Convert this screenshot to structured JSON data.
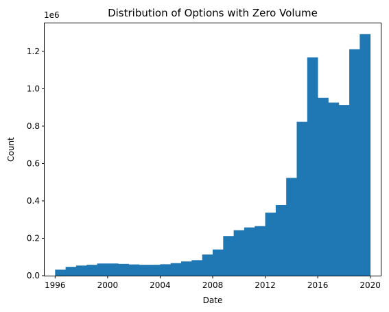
{
  "chart_data": {
    "type": "bar",
    "title": "Distribution of Options with Zero Volume",
    "xlabel": "Date",
    "ylabel": "Count",
    "y_offset_label": "1e6",
    "bar_color": "#1f77b4",
    "grid": false,
    "legend": "none",
    "xlim": [
      1995.2,
      2020.8
    ],
    "ylim": [
      0,
      1.35
    ],
    "x_ticks": [
      1996,
      2000,
      2004,
      2008,
      2012,
      2016,
      2020
    ],
    "x_tick_labels": [
      "1996",
      "2000",
      "2004",
      "2008",
      "2012",
      "2016",
      "2020"
    ],
    "y_ticks": [
      0.0,
      0.2,
      0.4,
      0.6,
      0.8,
      1.0,
      1.2
    ],
    "y_tick_labels": [
      "0.0",
      "0.2",
      "0.4",
      "0.6",
      "0.8",
      "1.0",
      "1.2"
    ],
    "bin_edges": [
      1996.0,
      1996.8,
      1997.6,
      1998.4,
      1999.2,
      2000.0,
      2000.8,
      2001.6,
      2002.4,
      2003.2,
      2004.0,
      2004.8,
      2005.6,
      2006.4,
      2007.2,
      2008.0,
      2008.8,
      2009.6,
      2010.4,
      2011.2,
      2012.0,
      2012.8,
      2013.6,
      2014.4,
      2015.2,
      2016.0,
      2016.8,
      2017.6,
      2018.4,
      2019.2,
      2020.0
    ],
    "values": [
      0.032,
      0.047,
      0.054,
      0.058,
      0.065,
      0.065,
      0.063,
      0.06,
      0.058,
      0.058,
      0.061,
      0.067,
      0.076,
      0.083,
      0.113,
      0.14,
      0.212,
      0.243,
      0.258,
      0.265,
      0.337,
      0.378,
      0.523,
      0.823,
      1.168,
      0.951,
      0.926,
      0.913,
      1.211,
      1.292
    ]
  }
}
